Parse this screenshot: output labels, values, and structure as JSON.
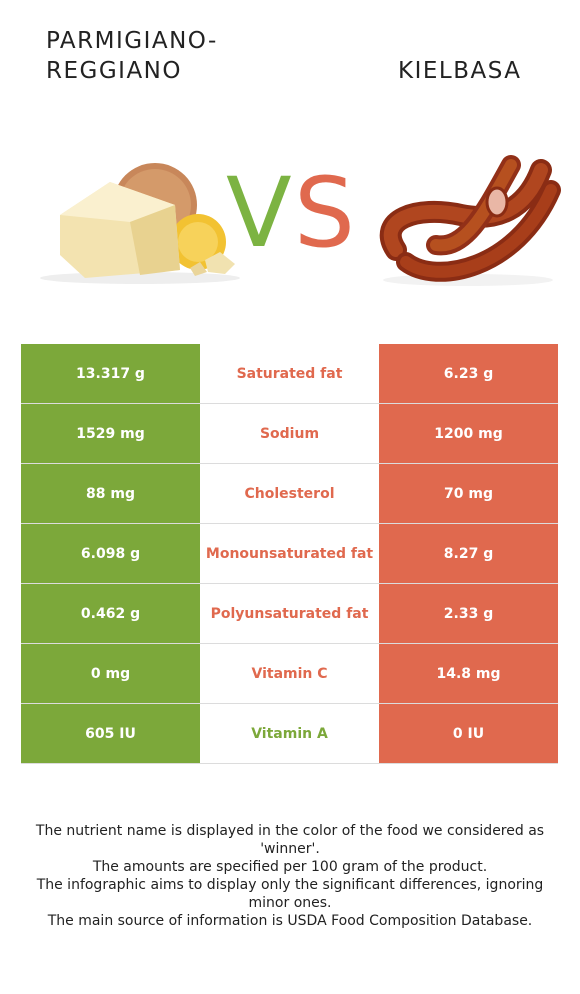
{
  "header": {
    "left_food": "PARMIGIANO-REGGIANO",
    "right_food": "KIELBASA",
    "vs_v": "V",
    "vs_s": "S"
  },
  "colors": {
    "left_winner": "#7ca83a",
    "right_winner": "#e0694e"
  },
  "rows": [
    {
      "left": "13.317 g",
      "nutrient": "Saturated fat",
      "right": "6.23 g",
      "winner": "right"
    },
    {
      "left": "1529 mg",
      "nutrient": "Sodium",
      "right": "1200 mg",
      "winner": "right"
    },
    {
      "left": "88 mg",
      "nutrient": "Cholesterol",
      "right": "70 mg",
      "winner": "right"
    },
    {
      "left": "6.098 g",
      "nutrient": "Monounsaturated fat",
      "right": "8.27 g",
      "winner": "right"
    },
    {
      "left": "0.462 g",
      "nutrient": "Polyunsaturated fat",
      "right": "2.33 g",
      "winner": "right"
    },
    {
      "left": "0 mg",
      "nutrient": "Vitamin C",
      "right": "14.8 mg",
      "winner": "right"
    },
    {
      "left": "605 IU",
      "nutrient": "Vitamin A",
      "right": "0 IU",
      "winner": "left"
    }
  ],
  "footer": {
    "line1": "The nutrient name is displayed in the color of the food we considered as 'winner'.",
    "line2": "The amounts are specified per 100 gram of the product.",
    "line3": "The infographic aims to display only the significant differences, ignoring minor ones.",
    "line4": "The main source of information is USDA Food Composition Database."
  }
}
